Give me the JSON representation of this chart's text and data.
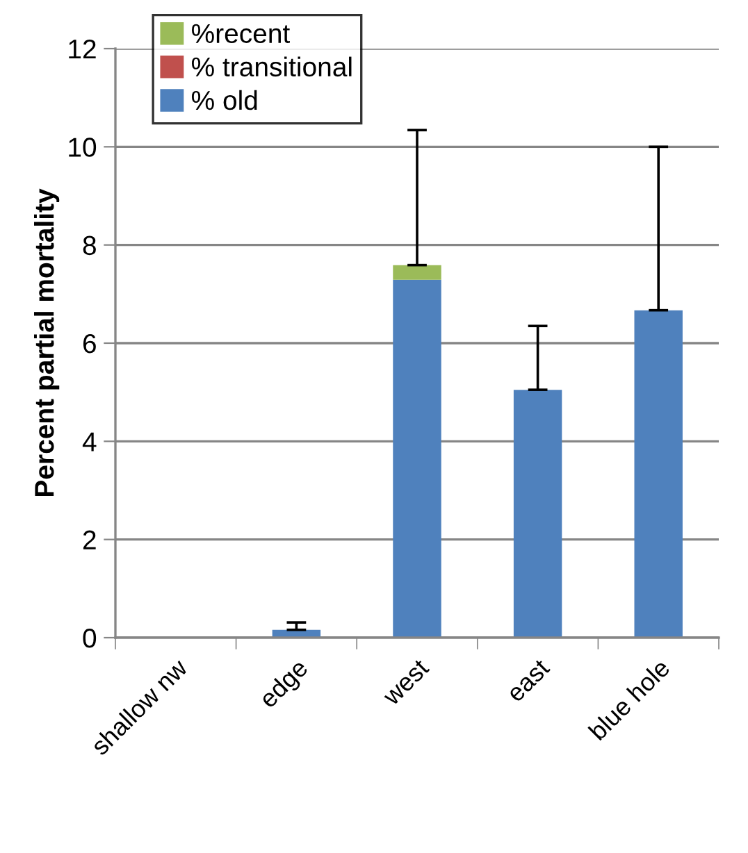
{
  "chart_data": {
    "type": "bar",
    "stacked": true,
    "ylabel": "Percent partial mortality",
    "categories": [
      "shallow nw",
      "edge",
      "west",
      "east",
      "blue hole"
    ],
    "series": [
      {
        "name": "% old",
        "color": "#4f81bd",
        "values": [
          0,
          0.16,
          7.29,
          5.05,
          6.67
        ],
        "errors": [
          null,
          0.15,
          null,
          1.3,
          3.33
        ]
      },
      {
        "name": "% transitional",
        "color": "#c0504d",
        "values": [
          0,
          0,
          0,
          0,
          0
        ]
      },
      {
        "name": "%recent",
        "color": "#9bbb59",
        "values": [
          0,
          0,
          0.3,
          0,
          0
        ],
        "errors": [
          null,
          null,
          2.75,
          null,
          null
        ]
      }
    ],
    "ylim": [
      0,
      12
    ],
    "yticks": [
      0,
      2,
      4,
      6,
      8,
      10,
      12
    ],
    "grid": "y",
    "legend": "top left"
  }
}
